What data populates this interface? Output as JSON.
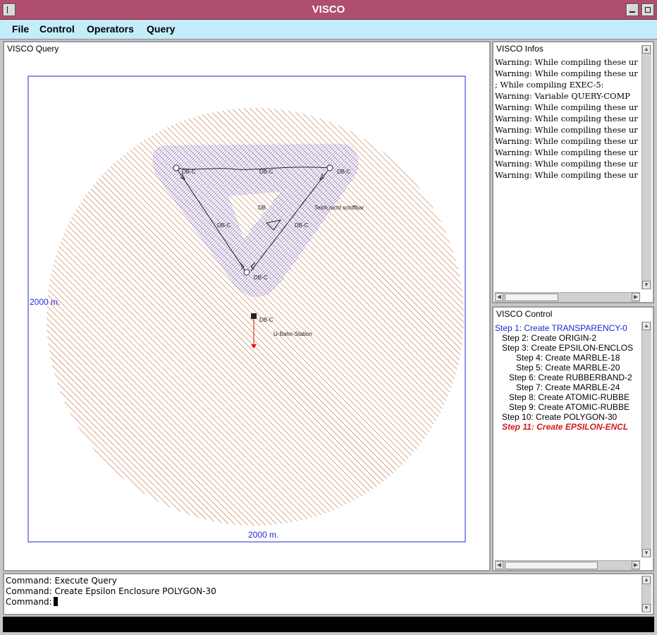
{
  "window": {
    "title": "VISCO"
  },
  "menu": {
    "items": [
      "File",
      "Control",
      "Operators",
      "Query"
    ]
  },
  "query_panel": {
    "label": "VISCO Query",
    "scale_left": "2000 m.",
    "scale_bottom": "2000 m.",
    "scene_labels": {
      "db_c_top_left": "DB-C",
      "db_c_top_mid": "DB-C",
      "db_c_top_right": "DB-C",
      "db_center": "DB",
      "pond": "Teich,nicht schiffbar",
      "db_c_left": "DB-C",
      "db_c_right": "DB-C",
      "db_c_bottom": "DB-C",
      "db_c_station": "DB-C",
      "station": "U-Bahn-Station"
    },
    "colors": {
      "frame": "#1f2bd0",
      "epsilon_hatch": "#c0703a",
      "polygon_hatch": "#4a4ad8",
      "arrow": "#e01010"
    }
  },
  "infos_panel": {
    "label": "VISCO Infos",
    "lines": [
      "Warning: While compiling these ur",
      "Warning: While compiling these ur",
      "; While compiling EXEC-5:",
      "Warning: Variable QUERY-COMP",
      "Warning: While compiling these ur",
      "Warning: While compiling these ur",
      "Warning: While compiling these ur",
      "Warning: While compiling these ur",
      "Warning: While compiling these ur",
      "Warning: While compiling these ur",
      "Warning: While compiling these ur"
    ]
  },
  "control_panel": {
    "label": "VISCO Control",
    "steps": [
      {
        "text": "Step 1: Create TRANSPARENCY-0",
        "indent": 0,
        "state": "active"
      },
      {
        "text": "Step 2: Create ORIGIN-2",
        "indent": 1,
        "state": "normal"
      },
      {
        "text": "Step 3: Create EPSILON-ENCLOS",
        "indent": 1,
        "state": "normal"
      },
      {
        "text": "Step 4: Create MARBLE-18",
        "indent": 3,
        "state": "normal"
      },
      {
        "text": "Step 5: Create MARBLE-20",
        "indent": 3,
        "state": "normal"
      },
      {
        "text": "Step 6: Create RUBBERBAND-2",
        "indent": 2,
        "state": "normal"
      },
      {
        "text": "Step 7: Create MARBLE-24",
        "indent": 3,
        "state": "normal"
      },
      {
        "text": "Step 8: Create ATOMIC-RUBBE",
        "indent": 2,
        "state": "normal"
      },
      {
        "text": "Step 9: Create ATOMIC-RUBBE",
        "indent": 2,
        "state": "normal"
      },
      {
        "text": "Step 10: Create POLYGON-30",
        "indent": 1,
        "state": "normal"
      },
      {
        "text": "Step 11: Create EPSILON-ENCL",
        "indent": 1,
        "state": "current"
      }
    ]
  },
  "command_panel": {
    "lines": [
      "Command: Execute Query",
      "Command: Create Epsilon Enclosure POLYGON-30"
    ],
    "prompt": "Command:"
  }
}
